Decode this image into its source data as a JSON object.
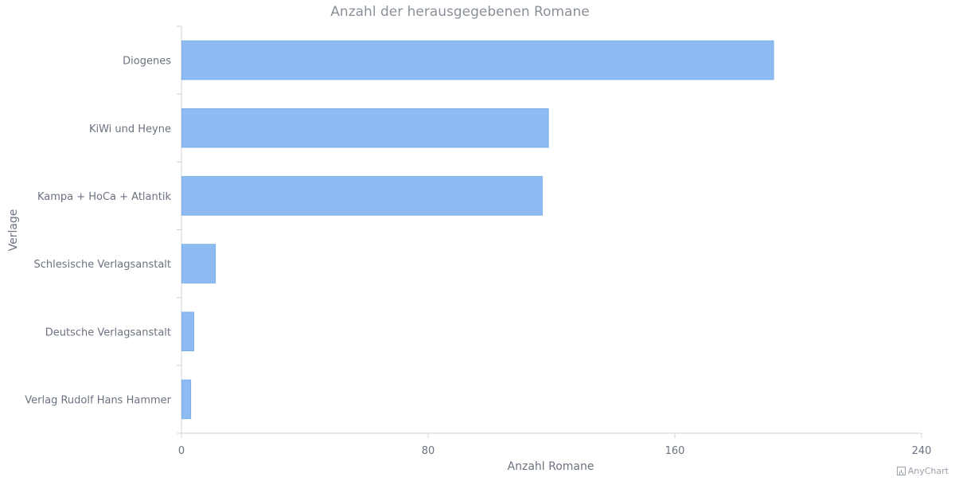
{
  "chart_data": {
    "type": "bar",
    "orientation": "horizontal",
    "title": "Anzahl der herausgegebenen Romane",
    "xlabel": "Anzahl Romane",
    "ylabel": "Verlage",
    "categories": [
      "Diogenes",
      "KiWi und Heyne",
      "Kampa + HoCa + Atlantik",
      "Schlesische Verlagsanstalt",
      "Deutsche Verlagsanstalt",
      "Verlag Rudolf Hans Hammer"
    ],
    "values": [
      192,
      119,
      117,
      11,
      4,
      3
    ],
    "xlim": [
      0,
      240
    ],
    "xticks": [
      "0",
      "80",
      "160",
      "240"
    ],
    "bar_color": "#8ebcf2",
    "bar_stroke": "#7aaee9",
    "grid": false
  },
  "credit": {
    "label": "AnyChart",
    "icon": "bar-chart-icon"
  }
}
